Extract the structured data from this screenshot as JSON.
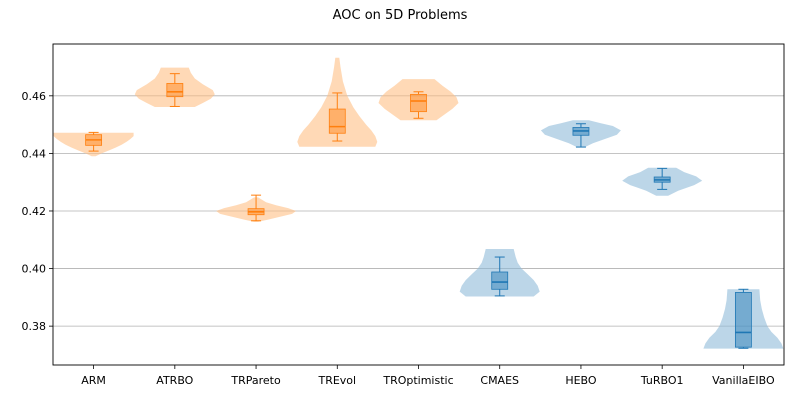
{
  "chart_data": {
    "type": "violin",
    "title": "AOC on 5D Problems",
    "xlabel": "",
    "ylabel": "",
    "ylim": [
      0.3665,
      0.478
    ],
    "yticks": [
      0.38,
      0.4,
      0.42,
      0.44,
      0.46
    ],
    "ytick_labels": [
      "0.38",
      "0.40",
      "0.42",
      "0.44",
      "0.46"
    ],
    "grid": "y",
    "categories": [
      "ARM",
      "ATRBO",
      "TRPareto",
      "TREvol",
      "TROptimistic",
      "CMAES",
      "HEBO",
      "TuRBO1",
      "VanillaEIBO"
    ],
    "groups": [
      {
        "color": "#ff7f0e",
        "fill": "#ffbf86",
        "members": [
          "ARM",
          "ATRBO",
          "TRPareto",
          "TREvol",
          "TROptimistic"
        ]
      },
      {
        "color": "#1f77b4",
        "fill": "#8fbbd9",
        "members": [
          "CMAES",
          "HEBO",
          "TuRBO1",
          "VanillaEIBO"
        ]
      }
    ],
    "series": [
      {
        "name": "ARM",
        "min": 0.4408,
        "q1": 0.4428,
        "median": 0.4447,
        "q3": 0.4465,
        "max": 0.4473,
        "kde_min": 0.439,
        "kde_max": 0.4472,
        "profile": [
          [
            0.439,
            0.05
          ],
          [
            0.44,
            0.2
          ],
          [
            0.441,
            0.38
          ],
          [
            0.442,
            0.55
          ],
          [
            0.443,
            0.7
          ],
          [
            0.444,
            0.82
          ],
          [
            0.445,
            0.92
          ],
          [
            0.446,
            1.0
          ],
          [
            0.4472,
            1.0
          ]
        ]
      },
      {
        "name": "ATRBO",
        "min": 0.4563,
        "q1": 0.4597,
        "median": 0.4614,
        "q3": 0.4643,
        "max": 0.4677,
        "kde_min": 0.4561,
        "kde_max": 0.4698,
        "profile": [
          [
            0.4561,
            0.5
          ],
          [
            0.4575,
            0.7
          ],
          [
            0.459,
            0.9
          ],
          [
            0.4605,
            1.0
          ],
          [
            0.462,
            0.95
          ],
          [
            0.464,
            0.7
          ],
          [
            0.466,
            0.5
          ],
          [
            0.468,
            0.4
          ],
          [
            0.4698,
            0.35
          ]
        ]
      },
      {
        "name": "TRPareto",
        "min": 0.4166,
        "q1": 0.4187,
        "median": 0.4197,
        "q3": 0.4208,
        "max": 0.4255,
        "kde_min": 0.4162,
        "kde_max": 0.4247,
        "profile": [
          [
            0.4162,
            0.05
          ],
          [
            0.417,
            0.3
          ],
          [
            0.418,
            0.6
          ],
          [
            0.419,
            0.9
          ],
          [
            0.42,
            1.0
          ],
          [
            0.421,
            0.8
          ],
          [
            0.422,
            0.5
          ],
          [
            0.423,
            0.25
          ],
          [
            0.4247,
            0.05
          ]
        ]
      },
      {
        "name": "TREvol",
        "min": 0.4443,
        "q1": 0.447,
        "median": 0.4493,
        "q3": 0.4554,
        "max": 0.461,
        "kde_min": 0.4423,
        "kde_max": 0.4732,
        "profile": [
          [
            0.4423,
            0.95
          ],
          [
            0.444,
            1.0
          ],
          [
            0.446,
            0.95
          ],
          [
            0.448,
            0.85
          ],
          [
            0.45,
            0.72
          ],
          [
            0.453,
            0.55
          ],
          [
            0.456,
            0.4
          ],
          [
            0.46,
            0.25
          ],
          [
            0.465,
            0.14
          ],
          [
            0.47,
            0.08
          ],
          [
            0.4732,
            0.05
          ]
        ]
      },
      {
        "name": "TROptimistic",
        "min": 0.4522,
        "q1": 0.4545,
        "median": 0.4582,
        "q3": 0.4605,
        "max": 0.4614,
        "kde_min": 0.4515,
        "kde_max": 0.4658,
        "profile": [
          [
            0.4515,
            0.45
          ],
          [
            0.4535,
            0.65
          ],
          [
            0.4555,
            0.85
          ],
          [
            0.4575,
            1.0
          ],
          [
            0.4595,
            0.95
          ],
          [
            0.4615,
            0.8
          ],
          [
            0.4635,
            0.6
          ],
          [
            0.4658,
            0.4
          ]
        ]
      },
      {
        "name": "CMAES",
        "min": 0.3905,
        "q1": 0.3928,
        "median": 0.3953,
        "q3": 0.3988,
        "max": 0.404,
        "kde_min": 0.3903,
        "kde_max": 0.4068,
        "profile": [
          [
            0.3903,
            0.85
          ],
          [
            0.392,
            1.0
          ],
          [
            0.394,
            0.95
          ],
          [
            0.396,
            0.85
          ],
          [
            0.398,
            0.7
          ],
          [
            0.4,
            0.55
          ],
          [
            0.402,
            0.45
          ],
          [
            0.404,
            0.4
          ],
          [
            0.4068,
            0.35
          ]
        ]
      },
      {
        "name": "HEBO",
        "min": 0.4422,
        "q1": 0.4463,
        "median": 0.4478,
        "q3": 0.449,
        "max": 0.4503,
        "kde_min": 0.4422,
        "kde_max": 0.4515,
        "profile": [
          [
            0.4422,
            0.1
          ],
          [
            0.4435,
            0.3
          ],
          [
            0.445,
            0.6
          ],
          [
            0.4465,
            0.9
          ],
          [
            0.448,
            1.0
          ],
          [
            0.4495,
            0.8
          ],
          [
            0.4505,
            0.5
          ],
          [
            0.4515,
            0.2
          ]
        ]
      },
      {
        "name": "TuRBO1",
        "min": 0.4275,
        "q1": 0.43,
        "median": 0.4308,
        "q3": 0.4318,
        "max": 0.4348,
        "kde_min": 0.4253,
        "kde_max": 0.435,
        "profile": [
          [
            0.4253,
            0.15
          ],
          [
            0.427,
            0.4
          ],
          [
            0.429,
            0.8
          ],
          [
            0.4305,
            1.0
          ],
          [
            0.432,
            0.85
          ],
          [
            0.4335,
            0.55
          ],
          [
            0.435,
            0.35
          ]
        ]
      },
      {
        "name": "VanillaEIBO",
        "min": 0.3723,
        "q1": 0.3727,
        "median": 0.3778,
        "q3": 0.3917,
        "max": 0.3928,
        "kde_min": 0.3722,
        "kde_max": 0.3928,
        "profile": [
          [
            0.3722,
            1.0
          ],
          [
            0.374,
            0.95
          ],
          [
            0.376,
            0.85
          ],
          [
            0.378,
            0.7
          ],
          [
            0.38,
            0.6
          ],
          [
            0.383,
            0.52
          ],
          [
            0.386,
            0.46
          ],
          [
            0.389,
            0.42
          ],
          [
            0.3928,
            0.4
          ]
        ]
      }
    ]
  }
}
